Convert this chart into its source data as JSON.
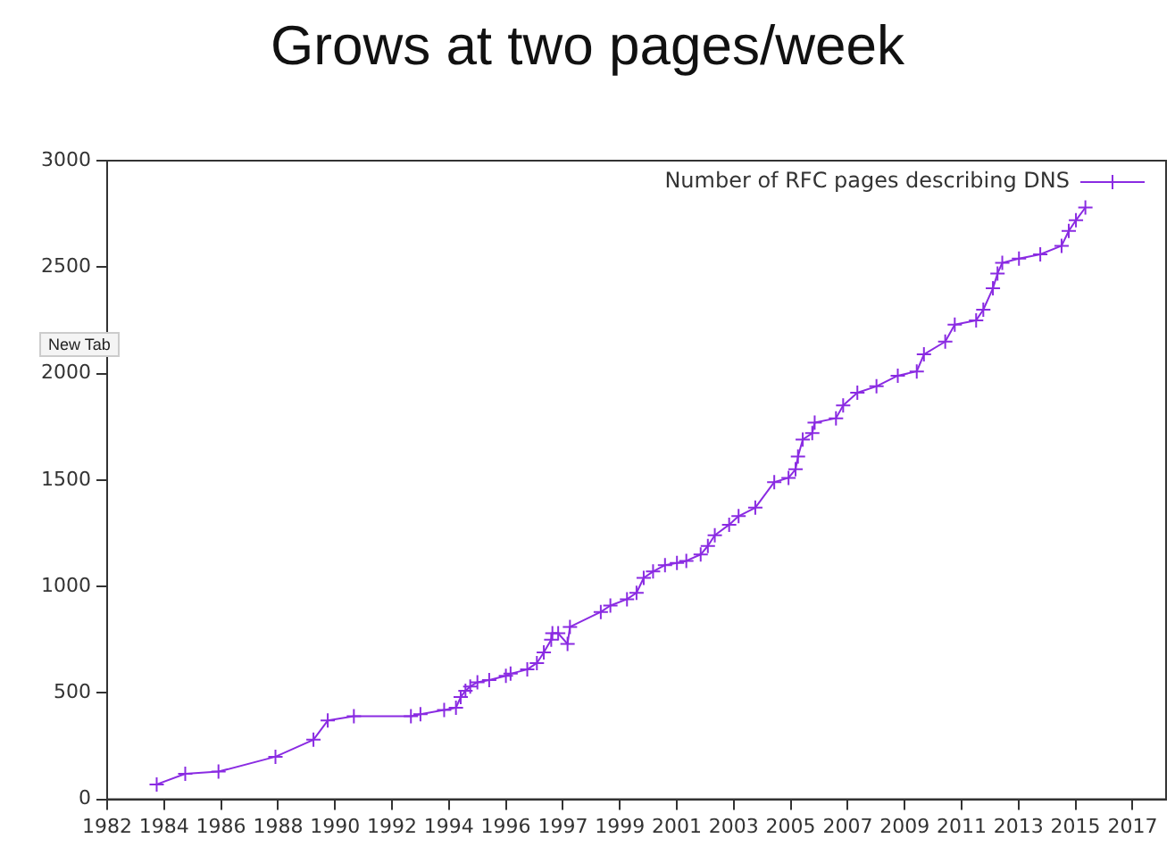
{
  "chart_data": {
    "type": "line",
    "title": "Grows at two pages/week",
    "series": [
      {
        "name": "Number of RFC pages describing DNS",
        "color": "#8a2be2",
        "x": [
          "1983-10",
          "1984-10",
          "1985-12",
          "1987-12",
          "1989-04",
          "1989-10",
          "1990-09",
          "1992-09",
          "1993-01",
          "1993-11",
          "1994-04",
          "1994-06",
          "1994-08",
          "1994-10",
          "1995-01",
          "1995-06",
          "1996-01",
          "1996-03",
          "1996-10",
          "1997-02",
          "1997-05",
          "1997-08-04",
          "1997-08-19",
          "1997-11",
          "1998-03",
          "1998-04",
          "1999-05",
          "1999-09",
          "2000-04",
          "2000-08",
          "2000-11",
          "2001-03",
          "2001-08",
          "2002-01",
          "2002-05",
          "2002-11",
          "2003-02",
          "2003-05",
          "2003-11",
          "2004-03",
          "2004-10",
          "2005-06",
          "2005-12",
          "2006-03",
          "2006-04",
          "2006-06",
          "2006-10",
          "2006-11",
          "2007-08",
          "2007-11",
          "2008-05",
          "2009-01",
          "2009-10",
          "2010-06",
          "2010-09",
          "2011-06",
          "2011-10",
          "2012-07",
          "2012-10",
          "2013-02",
          "2013-04",
          "2013-06",
          "2014-01",
          "2014-10",
          "2015-07",
          "2015-10",
          "2016-01",
          "2016-05"
        ],
        "values": [
          70,
          120,
          130,
          200,
          280,
          370,
          390,
          390,
          400,
          420,
          430,
          480,
          510,
          530,
          550,
          560,
          580,
          590,
          610,
          640,
          690,
          750,
          780,
          780,
          730,
          810,
          880,
          910,
          940,
          970,
          1040,
          1070,
          1100,
          1110,
          1120,
          1150,
          1190,
          1240,
          1290,
          1330,
          1370,
          1490,
          1510,
          1550,
          1610,
          1690,
          1720,
          1770,
          1790,
          1850,
          1910,
          1940,
          1990,
          2010,
          2090,
          2150,
          2230,
          2250,
          2300,
          2400,
          2470,
          2520,
          2540,
          2560,
          2600,
          2670,
          2720,
          2780
        ]
      }
    ],
    "xlim": [
      "1982-01-04",
      "2019-03"
    ],
    "xticks": [
      {
        "value": "1982-01-04",
        "label": "1982"
      },
      {
        "value": "1984-01-04",
        "label": "1984"
      },
      {
        "value": "1986-01-03",
        "label": "1986"
      },
      {
        "value": "1988-01-03",
        "label": "1988"
      },
      {
        "value": "1990-01-02",
        "label": "1990"
      },
      {
        "value": "1992-01-02",
        "label": "1992"
      },
      {
        "value": "1994-01-01",
        "label": "1994"
      },
      {
        "value": "1996-01-01",
        "label": "1996"
      },
      {
        "value": "1997-12-31",
        "label": "1997"
      },
      {
        "value": "1999-12-31",
        "label": "1999"
      },
      {
        "value": "2001-12-30",
        "label": "2001"
      },
      {
        "value": "2003-12-30",
        "label": "2003"
      },
      {
        "value": "2005-12-29",
        "label": "2005"
      },
      {
        "value": "2007-12-29",
        "label": "2007"
      },
      {
        "value": "2009-12-28",
        "label": "2009"
      },
      {
        "value": "2011-12-28",
        "label": "2011"
      },
      {
        "value": "2013-12-27",
        "label": "2013"
      },
      {
        "value": "2015-12-27",
        "label": "2015"
      },
      {
        "value": "2017-12-26",
        "label": "2017"
      }
    ],
    "ylim": [
      0,
      3000
    ],
    "yticks": [
      0,
      500,
      1000,
      1500,
      2000,
      2500,
      3000
    ],
    "grid": false,
    "legend": "top right",
    "marker": "cross",
    "line_style": "solid",
    "annotations": [
      "New Tab"
    ]
  }
}
